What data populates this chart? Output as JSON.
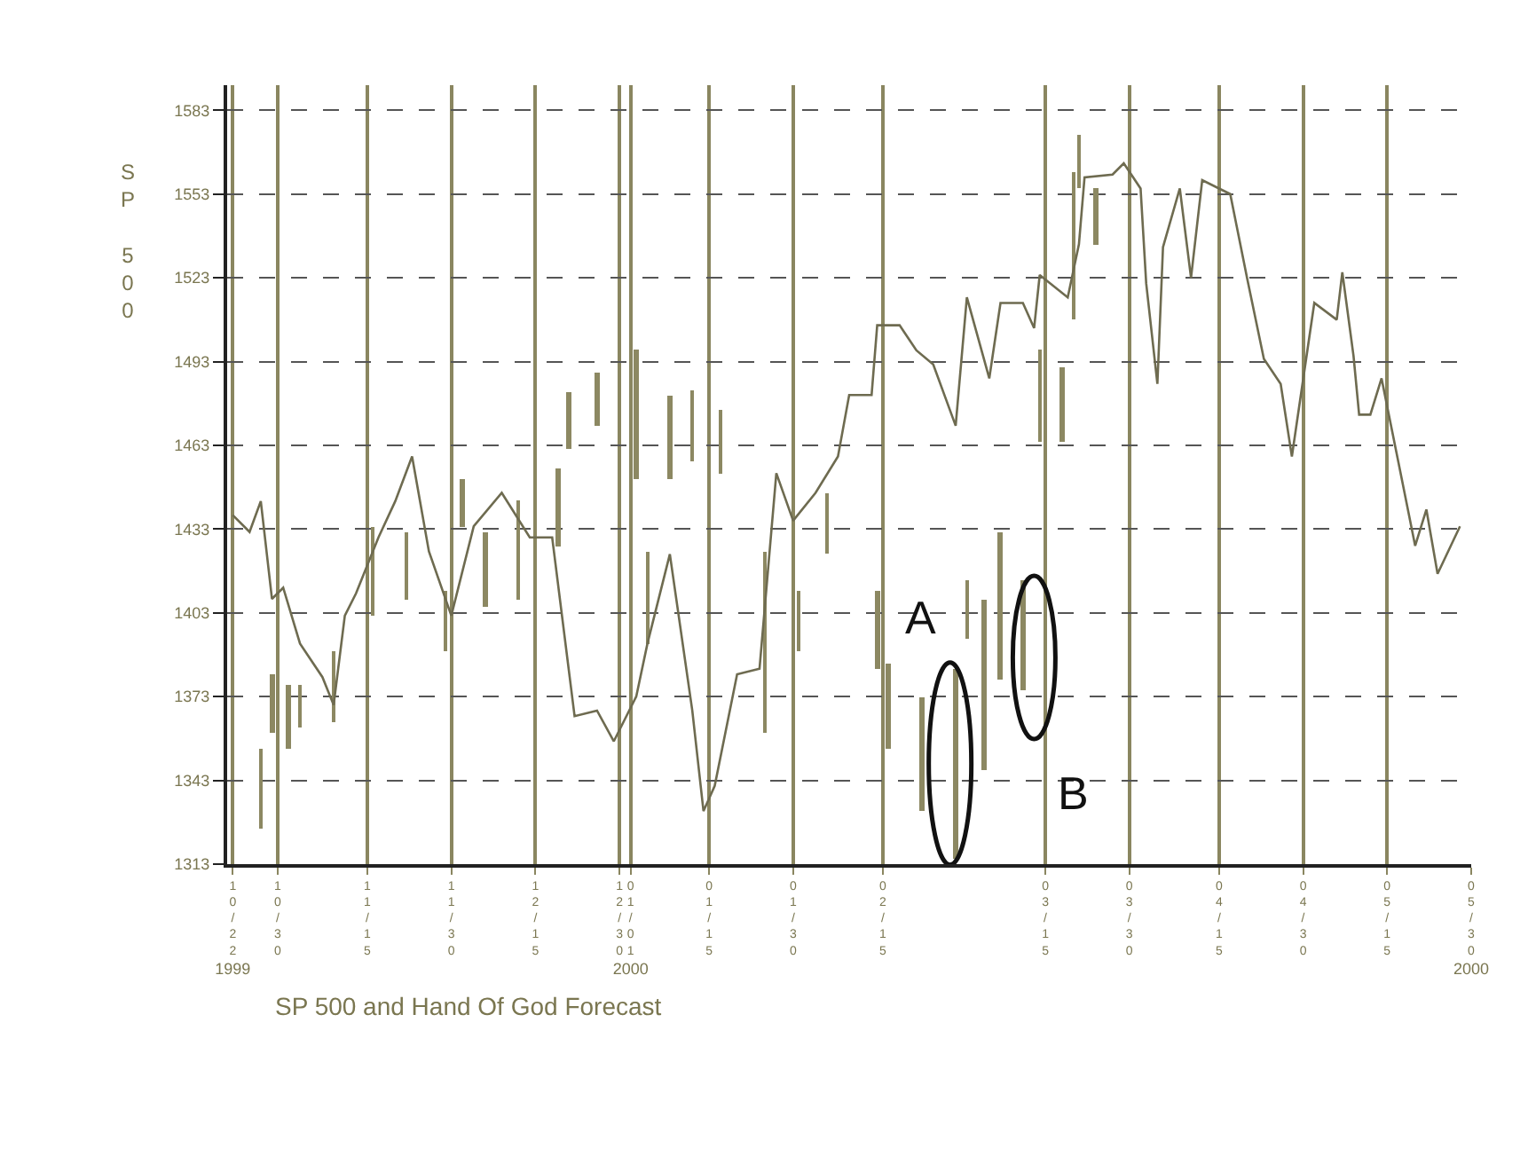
{
  "chart_data": {
    "type": "line",
    "title": "SP 500 and Hand Of God Forecast",
    "ylabel": "SP 500",
    "xlim": [
      "1999-10-21",
      "2000-05-30"
    ],
    "xticks": [
      {
        "value": "1999-10-22",
        "label": "10/22"
      },
      {
        "value": "1999-10-30",
        "label": "10/30"
      },
      {
        "value": "1999-11-15",
        "label": "11/15"
      },
      {
        "value": "1999-11-30",
        "label": "11/30"
      },
      {
        "value": "1999-12-15",
        "label": "12/15"
      },
      {
        "value": "1999-12-30",
        "label": "12/30"
      },
      {
        "value": "2000-01-01",
        "label": "01/01"
      },
      {
        "value": "2000-01-15",
        "label": "01/15"
      },
      {
        "value": "2000-01-30",
        "label": "01/30"
      },
      {
        "value": "2000-02-15",
        "label": "02/15"
      },
      {
        "value": "2000-03-15",
        "label": "03/15"
      },
      {
        "value": "2000-03-30",
        "label": "03/30"
      },
      {
        "value": "2000-04-15",
        "label": "04/15"
      },
      {
        "value": "2000-04-30",
        "label": "04/30"
      },
      {
        "value": "2000-05-15",
        "label": "05/15"
      },
      {
        "value": "2000-05-30",
        "label": "05/30"
      }
    ],
    "x2lim": [
      "1999-10-21",
      "2000-05-30"
    ],
    "x2ticks": [
      {
        "value": "1999-10-22",
        "label": "1999"
      },
      {
        "value": "2000-01-01",
        "label": "2000"
      },
      {
        "value": "2000-05-30",
        "label": "2000"
      }
    ],
    "ylim": [
      1313,
      1592
    ],
    "yticks": [
      1313,
      1343,
      1373,
      1403,
      1433,
      1463,
      1493,
      1523,
      1553,
      1583
    ],
    "grid": true,
    "marker": "none",
    "line_style": "solid",
    "annotations": [
      {
        "text": "A",
        "x": "2000-02-27",
        "y": 1349
      },
      {
        "text": "B",
        "x": "2000-03-13",
        "y": 1387
      }
    ],
    "series": [
      {
        "color": "#6e6b50",
        "x": [
          "1999-10-22",
          "1999-10-25",
          "1999-10-27",
          "1999-10-29",
          "1999-10-31",
          "1999-11-03",
          "1999-11-07",
          "1999-11-09",
          "1999-11-11",
          "1999-11-13",
          "1999-11-17",
          "1999-11-20",
          "1999-11-23",
          "1999-11-26",
          "1999-11-30",
          "1999-12-04",
          "1999-12-09",
          "1999-12-14",
          "1999-12-18",
          "1999-12-22",
          "1999-12-26",
          "1999-12-29",
          "2000-01-02",
          "2000-01-04",
          "2000-01-08",
          "2000-01-12",
          "2000-01-14",
          "2000-01-16",
          "2000-01-20",
          "2000-01-24",
          "2000-01-27",
          "2000-01-30",
          "2000-02-03",
          "2000-02-07",
          "2000-02-09",
          "2000-02-13",
          "2000-02-14",
          "2000-02-18",
          "2000-02-21",
          "2000-02-24",
          "2000-02-28",
          "2000-03-01",
          "2000-03-05",
          "2000-03-07",
          "2000-03-11",
          "2000-03-13",
          "2000-03-14",
          "2000-03-19",
          "2000-03-21",
          "2000-03-22",
          "2000-03-27",
          "2000-03-29",
          "2000-04-01",
          "2000-04-02",
          "2000-04-04",
          "2000-04-05",
          "2000-04-08",
          "2000-04-10",
          "2000-04-12",
          "2000-04-17",
          "2000-04-20",
          "2000-04-23",
          "2000-04-26",
          "2000-04-28",
          "2000-05-02",
          "2000-05-06",
          "2000-05-07",
          "2000-05-09",
          "2000-05-10",
          "2000-05-12",
          "2000-05-14",
          "2000-05-17",
          "2000-05-20",
          "2000-05-22",
          "2000-05-24",
          "2000-05-28"
        ],
        "values": [
          1438,
          1432,
          1443,
          1408,
          1412,
          1392,
          1380,
          1370,
          1402,
          1410,
          1430,
          1443,
          1459,
          1425,
          1402,
          1434,
          1446,
          1430,
          1430,
          1366,
          1368,
          1357,
          1373,
          1392,
          1424,
          1368,
          1332,
          1341,
          1381,
          1383,
          1453,
          1436,
          1446,
          1459,
          1481,
          1481,
          1506,
          1506,
          1497,
          1492,
          1470,
          1516,
          1487,
          1514,
          1514,
          1505,
          1524,
          1516,
          1535,
          1559,
          1560,
          1564,
          1555,
          1521,
          1485,
          1534,
          1555,
          1523,
          1558,
          1553,
          1523,
          1494,
          1485,
          1459,
          1514,
          1508,
          1525,
          1495,
          1474,
          1474,
          1487,
          1457,
          1427,
          1440,
          1417,
          1434
        ]
      },
      {
        "type": "bar",
        "color": "#8c8862",
        "x": [
          "1999-10-27",
          "1999-10-29",
          "1999-11-01",
          "1999-11-03",
          "1999-11-09",
          "1999-11-16",
          "1999-11-22",
          "1999-11-29",
          "1999-12-02",
          "1999-12-06",
          "1999-12-12",
          "1999-12-19",
          "1999-12-21",
          "1999-12-26",
          "2000-01-02",
          "2000-01-04",
          "2000-01-08",
          "2000-01-12",
          "2000-01-17",
          "2000-01-25",
          "2000-01-31",
          "2000-02-05",
          "2000-02-14",
          "2000-02-16",
          "2000-02-22",
          "2000-02-28",
          "2000-03-01",
          "2000-03-04",
          "2000-03-07",
          "2000-03-11",
          "2000-03-14",
          "2000-03-18",
          "2000-03-20",
          "2000-03-21",
          "2000-03-24"
        ],
        "base": [
          1326,
          1360,
          1354,
          1362,
          1364,
          1402,
          1408,
          1389,
          1434,
          1405,
          1408,
          1427,
          1462,
          1470,
          1451,
          1392,
          1451,
          1457,
          1453,
          1360,
          1389,
          1424,
          1383,
          1354,
          1332,
          1315,
          1394,
          1347,
          1379,
          1375,
          1464,
          1464,
          1508,
          1555,
          1535
        ],
        "values": [
          28,
          21,
          23,
          15,
          25,
          32,
          24,
          22,
          17,
          27,
          35,
          28,
          20,
          19,
          46,
          33,
          30,
          26,
          23,
          65,
          22,
          22,
          28,
          31,
          41,
          68,
          21,
          61,
          53,
          40,
          33,
          27,
          53,
          19,
          20
        ]
      }
    ]
  }
}
